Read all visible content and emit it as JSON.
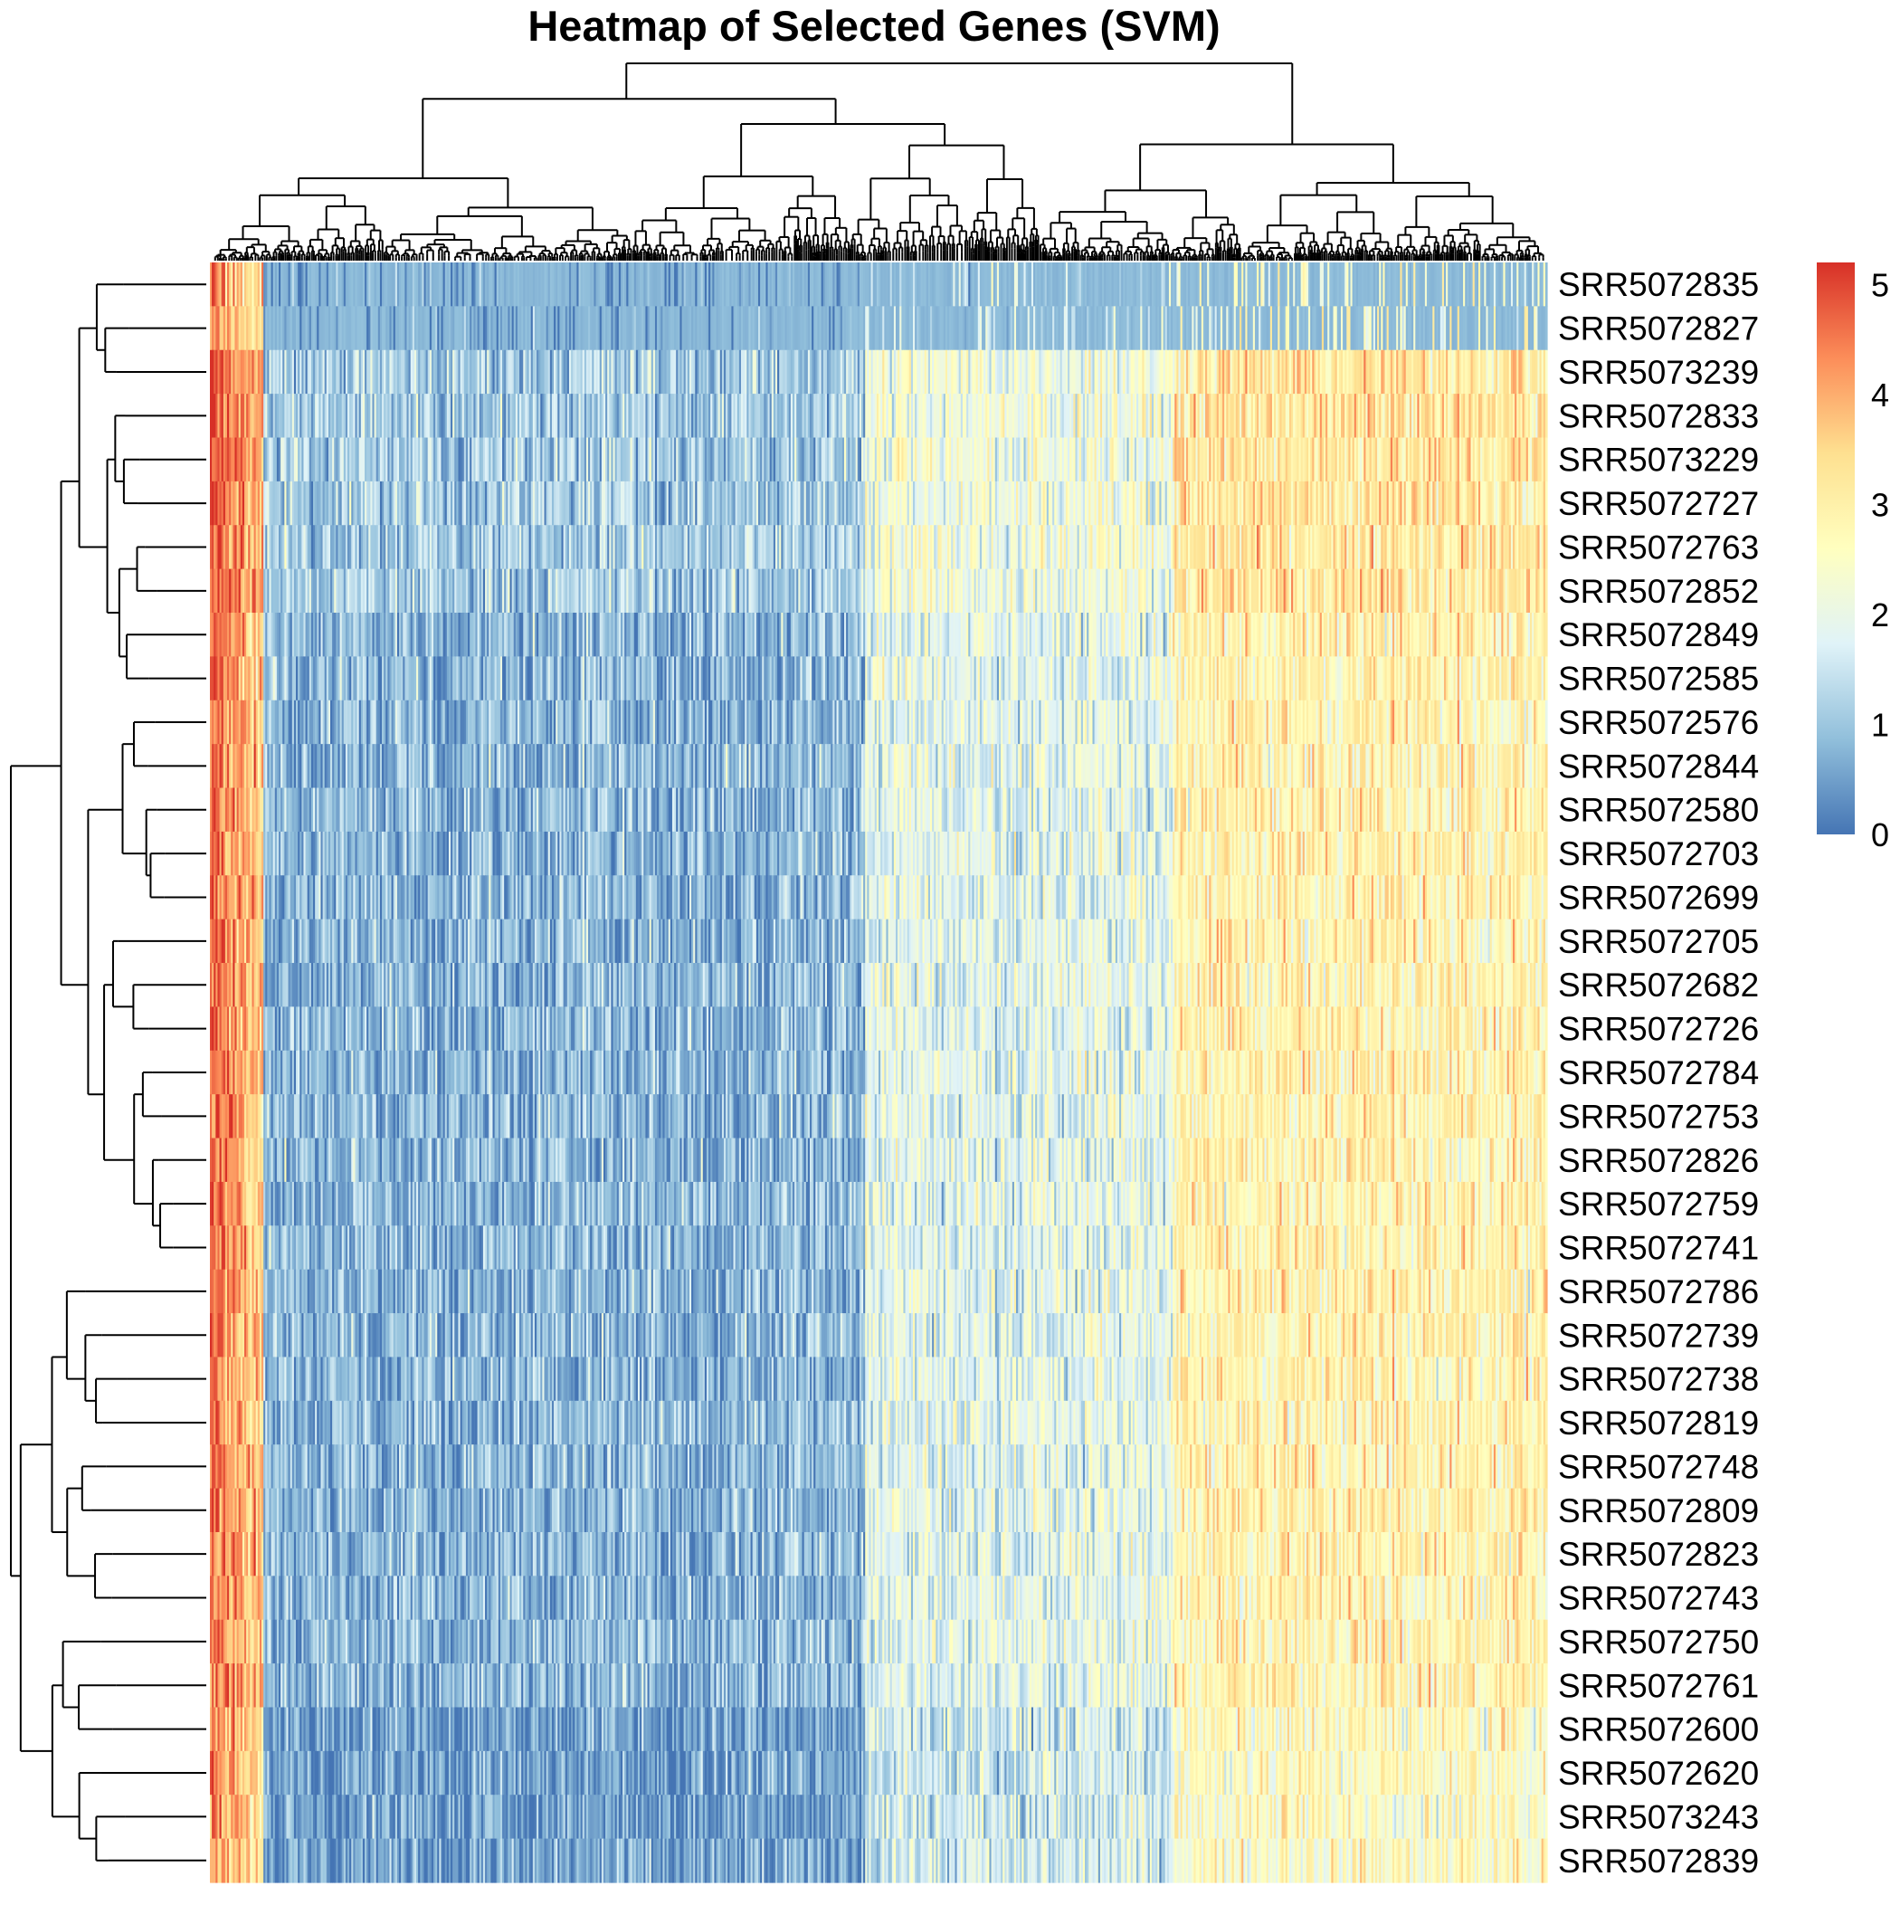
{
  "chart_data": {
    "type": "heatmap",
    "title": "Heatmap of Selected Genes (SVM)",
    "rows": [
      "SRR5072835",
      "SRR5072827",
      "SRR5073239",
      "SRR5072833",
      "SRR5073229",
      "SRR5072727",
      "SRR5072763",
      "SRR5072852",
      "SRR5072849",
      "SRR5072585",
      "SRR5072576",
      "SRR5072844",
      "SRR5072580",
      "SRR5072703",
      "SRR5072699",
      "SRR5072705",
      "SRR5072682",
      "SRR5072726",
      "SRR5072784",
      "SRR5072753",
      "SRR5072826",
      "SRR5072759",
      "SRR5072741",
      "SRR5072786",
      "SRR5072739",
      "SRR5072738",
      "SRR5072819",
      "SRR5072748",
      "SRR5072809",
      "SRR5072823",
      "SRR5072743",
      "SRR5072750",
      "SRR5072761",
      "SRR5072600",
      "SRR5072620",
      "SRR5073243",
      "SRR5072839"
    ],
    "columns_count_estimate": 700,
    "column_blocks": [
      {
        "name": "high-expression left block",
        "share": 0.04,
        "mean_level": 4.2
      },
      {
        "name": "low-expression block",
        "share": 0.45,
        "mean_level": 0.8
      },
      {
        "name": "mid-expression block",
        "share": 0.23,
        "mean_level": 1.9
      },
      {
        "name": "high-expression right block",
        "share": 0.28,
        "mean_level": 2.9
      }
    ],
    "row_block_levels": {
      "top_two_rows_mean": 0.9,
      "upper_group_mean": 1.6,
      "main_group_mean": 1.3,
      "bottom_group_mean": 1.0
    },
    "color_scale": {
      "min": 0,
      "max": 5.2,
      "colors": [
        "#4575b4",
        "#91bfdb",
        "#e0f3f8",
        "#ffffbf",
        "#fee090",
        "#fc8d59",
        "#d73027"
      ],
      "ticks": [
        0,
        1,
        2,
        3,
        4,
        5
      ]
    },
    "row_dendrogram": true,
    "column_dendrogram": true,
    "legend_position": "right"
  }
}
